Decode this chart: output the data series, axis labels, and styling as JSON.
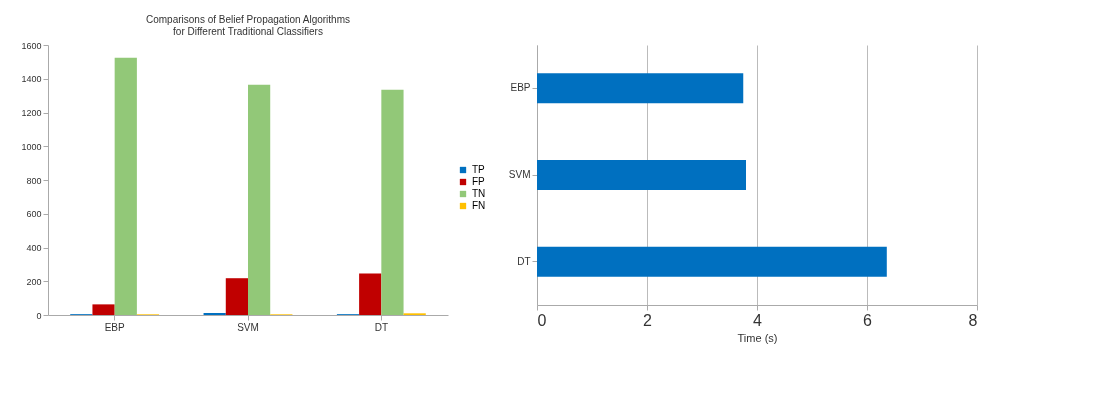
{
  "chart_data": [
    {
      "type": "bar",
      "title": [
        "Comparisons of Belief Propagation Algorithms",
        "for Different Traditional Classifiers"
      ],
      "categories": [
        "EBP",
        "SVM",
        "DT"
      ],
      "series": [
        {
          "name": "TP",
          "color": "#0070c0",
          "values": [
            5,
            12,
            5
          ]
        },
        {
          "name": "FP",
          "color": "#c00000",
          "values": [
            63,
            218,
            246
          ]
        },
        {
          "name": "TN",
          "color": "#92c878",
          "values": [
            1525,
            1364,
            1335
          ]
        },
        {
          "name": "FN",
          "color": "#ffc000",
          "values": [
            4,
            4,
            10
          ]
        }
      ],
      "ylim": [
        0,
        1600
      ],
      "yticks": [
        0,
        200,
        400,
        600,
        800,
        1000,
        1200,
        1400,
        1600
      ],
      "grid": false,
      "legend": "right"
    },
    {
      "type": "bar",
      "orientation": "horizontal",
      "categories": [
        "EBP",
        "SVM",
        "DT"
      ],
      "values": [
        3.75,
        3.8,
        6.36
      ],
      "color": "#0070c0",
      "xlabel": "Time (s)",
      "xlim": [
        0,
        8
      ],
      "xticks": [
        0,
        2,
        4,
        6,
        8
      ],
      "grid": "x"
    }
  ]
}
